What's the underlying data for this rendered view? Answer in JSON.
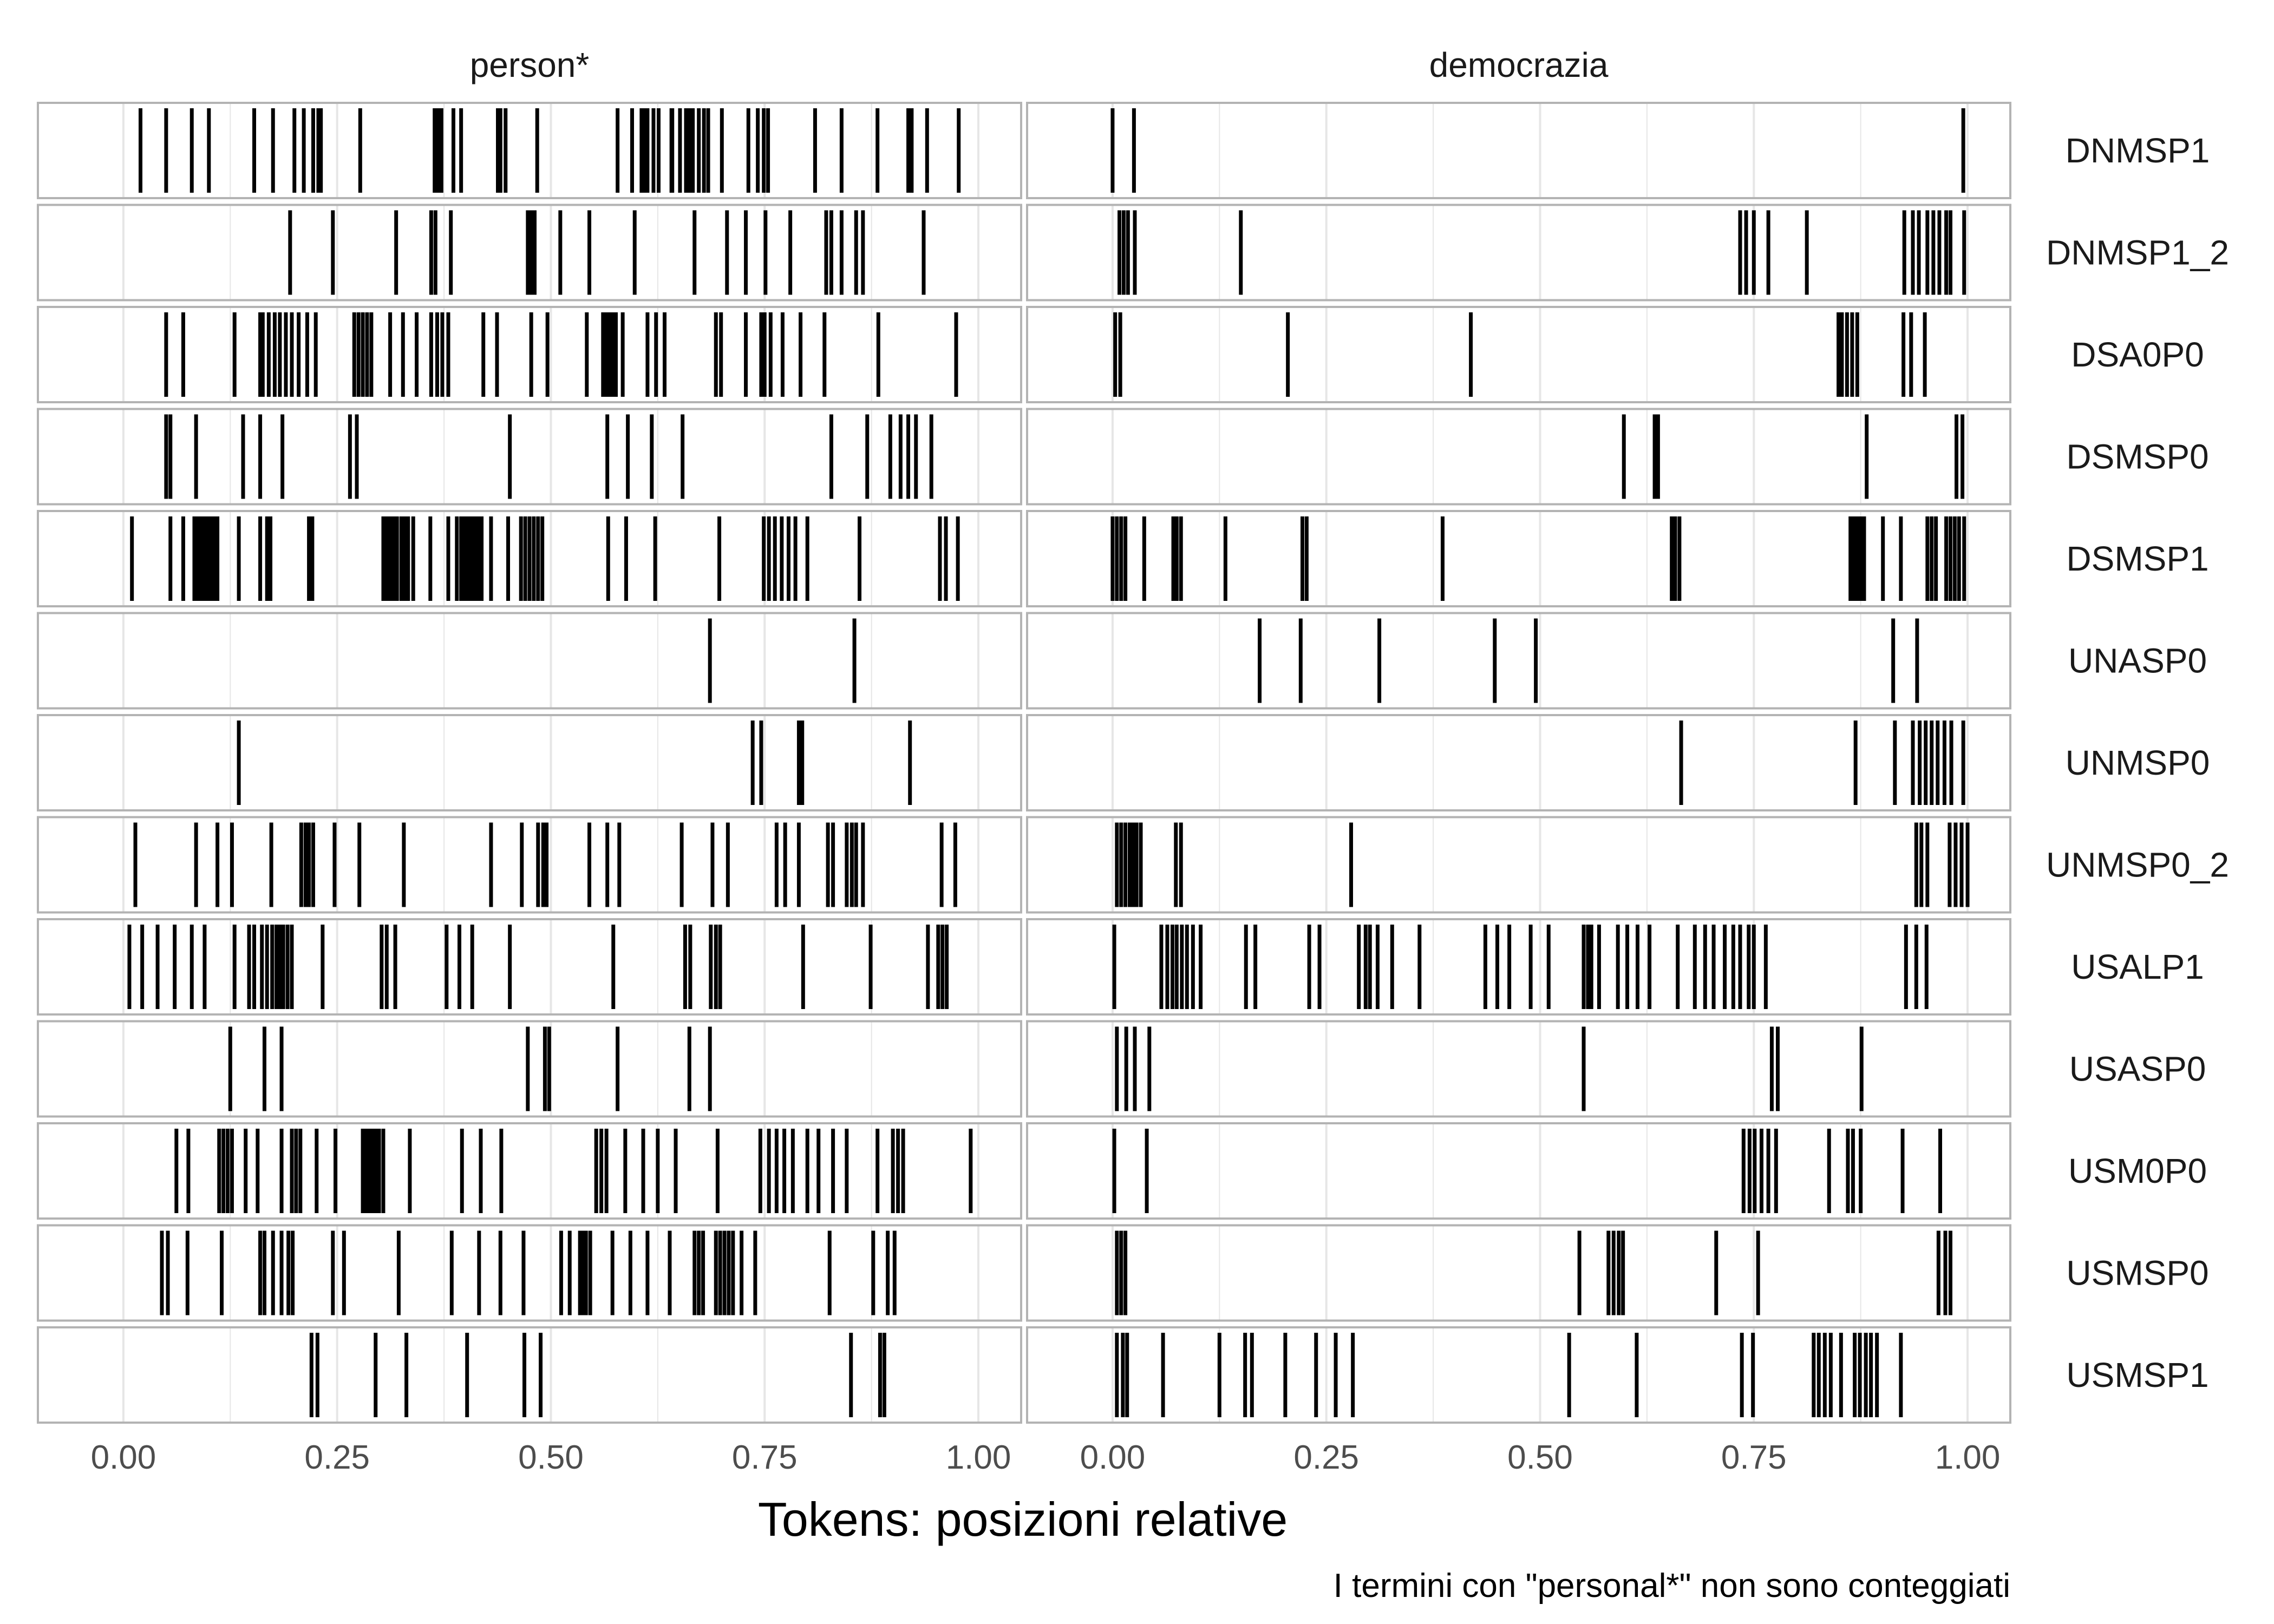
{
  "chart_data": {
    "type": "barcode",
    "facets": [
      "person*",
      "democrazia"
    ],
    "rows": [
      "DNMSP1",
      "DNMSP1_2",
      "DSA0P0",
      "DSMSP0",
      "DSMSP1",
      "UNASP0",
      "UNMSP0",
      "UNMSP0_2",
      "USALP1",
      "USASP0",
      "USM0P0",
      "USMSP0",
      "USMSP1"
    ],
    "xlabel": "Tokens: posizioni relative",
    "caption": "I termini con \"personal*\" non sono conteggiati",
    "xlim": [
      -0.1,
      1.05
    ],
    "ticks": [
      0.0,
      0.25,
      0.5,
      0.75,
      1.0
    ],
    "tick_labels": [
      "0.00",
      "0.25",
      "0.50",
      "0.75",
      "1.00"
    ],
    "grid": true,
    "colors": {
      "line": "#000000",
      "grid": "#e6e6e6",
      "panel_border": "#b3b3b3"
    },
    "positions": {
      "person*": {
        "DNMSP1": [
          0.02,
          0.05,
          0.08,
          0.1,
          0.153,
          0.175,
          0.2,
          0.211,
          0.222,
          0.228,
          0.231,
          0.277,
          0.364,
          0.368,
          0.372,
          0.386,
          0.395,
          0.438,
          0.438,
          0.441,
          0.447,
          0.484,
          0.578,
          0.595,
          0.606,
          0.609,
          0.613,
          0.62,
          0.626,
          0.641,
          0.642,
          0.651,
          0.658,
          0.662,
          0.666,
          0.673,
          0.679,
          0.684,
          0.7,
          0.731,
          0.742,
          0.749,
          0.754,
          0.809,
          0.84,
          0.882,
          0.918,
          0.922,
          0.94,
          0.977
        ],
        "DNMSP1_2": [
          0.195,
          0.245,
          0.319,
          0.36,
          0.365,
          0.383,
          0.473,
          0.476,
          0.478,
          0.481,
          0.511,
          0.545,
          0.598,
          0.668,
          0.706,
          0.728,
          0.751,
          0.78,
          0.822,
          0.828,
          0.84,
          0.857,
          0.865,
          0.936
        ],
        "DSA0P0": [
          0.05,
          0.07,
          0.13,
          0.16,
          0.163,
          0.17,
          0.177,
          0.183,
          0.19,
          0.197,
          0.205,
          0.215,
          0.225,
          0.27,
          0.275,
          0.28,
          0.285,
          0.29,
          0.312,
          0.327,
          0.343,
          0.36,
          0.367,
          0.373,
          0.38,
          0.421,
          0.437,
          0.477,
          0.496,
          0.542,
          0.561,
          0.565,
          0.568,
          0.572,
          0.576,
          0.584,
          0.613,
          0.623,
          0.633,
          0.693,
          0.699,
          0.728,
          0.746,
          0.75,
          0.757,
          0.771,
          0.792,
          0.82,
          0.883,
          0.974
        ],
        "DSMSP0": [
          0.05,
          0.055,
          0.085,
          0.14,
          0.16,
          0.186,
          0.265,
          0.273,
          0.452,
          0.566,
          0.59,
          0.618,
          0.654,
          0.828,
          0.87,
          0.897,
          0.909,
          0.918,
          0.927,
          0.945
        ],
        "DSMSP1": [
          0.01,
          0.055,
          0.07,
          0.083,
          0.087,
          0.09,
          0.094,
          0.098,
          0.102,
          0.106,
          0.11,
          0.135,
          0.16,
          0.168,
          0.172,
          0.217,
          0.221,
          0.304,
          0.308,
          0.312,
          0.316,
          0.32,
          0.325,
          0.329,
          0.333,
          0.339,
          0.359,
          0.38,
          0.39,
          0.395,
          0.399,
          0.403,
          0.407,
          0.411,
          0.415,
          0.419,
          0.43,
          0.45,
          0.465,
          0.47,
          0.475,
          0.48,
          0.485,
          0.49,
          0.567,
          0.588,
          0.622,
          0.697,
          0.749,
          0.755,
          0.762,
          0.77,
          0.778,
          0.786,
          0.8,
          0.861,
          0.955,
          0.962,
          0.976
        ],
        "UNASP0": [
          0.686,
          0.855
        ],
        "UNMSP0": [
          0.135,
          0.736,
          0.746,
          0.79,
          0.794,
          0.92
        ],
        "UNMSP0_2": [
          0.014,
          0.085,
          0.11,
          0.127,
          0.173,
          0.208,
          0.213,
          0.217,
          0.222,
          0.247,
          0.276,
          0.328,
          0.43,
          0.466,
          0.485,
          0.491,
          0.495,
          0.545,
          0.566,
          0.58,
          0.653,
          0.689,
          0.707,
          0.764,
          0.774,
          0.79,
          0.824,
          0.83,
          0.846,
          0.852,
          0.857,
          0.865,
          0.957,
          0.973
        ],
        "USALP1": [
          0.007,
          0.022,
          0.04,
          0.06,
          0.08,
          0.095,
          0.13,
          0.147,
          0.153,
          0.162,
          0.168,
          0.174,
          0.179,
          0.183,
          0.187,
          0.192,
          0.197,
          0.233,
          0.302,
          0.308,
          0.318,
          0.378,
          0.393,
          0.408,
          0.452,
          0.573,
          0.657,
          0.663,
          0.687,
          0.693,
          0.698,
          0.795,
          0.874,
          0.941,
          0.953,
          0.958,
          0.963
        ],
        "USASP0": [
          0.125,
          0.165,
          0.185,
          0.473,
          0.493,
          0.498,
          0.578,
          0.662,
          0.686
        ],
        "USM0P0": [
          0.062,
          0.076,
          0.112,
          0.117,
          0.122,
          0.127,
          0.143,
          0.157,
          0.185,
          0.197,
          0.202,
          0.207,
          0.226,
          0.248,
          0.28,
          0.284,
          0.288,
          0.292,
          0.296,
          0.299,
          0.304,
          0.335,
          0.396,
          0.418,
          0.442,
          0.553,
          0.559,
          0.565,
          0.587,
          0.608,
          0.625,
          0.646,
          0.695,
          0.745,
          0.755,
          0.764,
          0.773,
          0.783,
          0.8,
          0.813,
          0.83,
          0.846,
          0.882,
          0.9,
          0.906,
          0.912,
          0.991
        ],
        "USMSP0": [
          0.045,
          0.052,
          0.075,
          0.115,
          0.16,
          0.165,
          0.175,
          0.185,
          0.193,
          0.198,
          0.245,
          0.258,
          0.322,
          0.384,
          0.416,
          0.441,
          0.468,
          0.512,
          0.522,
          0.534,
          0.537,
          0.541,
          0.546,
          0.572,
          0.593,
          0.613,
          0.639,
          0.668,
          0.673,
          0.678,
          0.693,
          0.698,
          0.703,
          0.708,
          0.713,
          0.723,
          0.739,
          0.826,
          0.877,
          0.894,
          0.902
        ],
        "USMSP1": [
          0.22,
          0.227,
          0.295,
          0.331,
          0.402,
          0.469,
          0.488,
          0.851,
          0.885,
          0.89
        ]
      },
      "democrazia": {
        "DNMSP1": [
          0.0,
          0.025,
          0.995
        ],
        "DNMSP1_2": [
          0.008,
          0.013,
          0.018,
          0.026,
          0.15,
          0.734,
          0.741,
          0.75,
          0.767,
          0.812,
          0.926,
          0.936,
          0.943,
          0.953,
          0.96,
          0.967,
          0.975,
          0.98,
          0.996
        ],
        "DSA0P0": [
          0.003,
          0.009,
          0.205,
          0.419,
          0.849,
          0.853,
          0.859,
          0.865,
          0.871,
          0.925,
          0.934,
          0.95
        ],
        "DSMSP0": [
          0.598,
          0.634,
          0.638,
          0.882,
          0.987,
          0.994
        ],
        "DSMSP1": [
          0.0,
          0.005,
          0.01,
          0.015,
          0.037,
          0.071,
          0.075,
          0.08,
          0.132,
          0.222,
          0.227,
          0.386,
          0.654,
          0.658,
          0.663,
          0.863,
          0.867,
          0.871,
          0.875,
          0.879,
          0.901,
          0.922,
          0.953,
          0.958,
          0.963,
          0.975,
          0.98,
          0.985,
          0.99,
          0.996
        ],
        "UNASP0": [
          0.172,
          0.22,
          0.312,
          0.447,
          0.495,
          0.913,
          0.941
        ],
        "UNMSP0": [
          0.665,
          0.869,
          0.915,
          0.936,
          0.944,
          0.951,
          0.958,
          0.965,
          0.973,
          0.981,
          0.995
        ],
        "UNMSP0_2": [
          0.005,
          0.01,
          0.015,
          0.02,
          0.024,
          0.028,
          0.033,
          0.074,
          0.08,
          0.279,
          0.94,
          0.946,
          0.953,
          0.979,
          0.986,
          0.993,
          1.0
        ],
        "USALP1": [
          0.002,
          0.057,
          0.064,
          0.07,
          0.075,
          0.081,
          0.087,
          0.094,
          0.103,
          0.156,
          0.167,
          0.23,
          0.242,
          0.288,
          0.296,
          0.301,
          0.31,
          0.327,
          0.359,
          0.436,
          0.45,
          0.464,
          0.489,
          0.51,
          0.551,
          0.556,
          0.56,
          0.569,
          0.591,
          0.602,
          0.614,
          0.628,
          0.661,
          0.681,
          0.693,
          0.703,
          0.716,
          0.726,
          0.734,
          0.744,
          0.75,
          0.764,
          0.928,
          0.94,
          0.952
        ],
        "USASP0": [
          0.005,
          0.016,
          0.026,
          0.043,
          0.551,
          0.771,
          0.778,
          0.876
        ],
        "USM0P0": [
          0.002,
          0.04,
          0.738,
          0.745,
          0.751,
          0.759,
          0.767,
          0.776,
          0.838,
          0.86,
          0.866,
          0.875,
          0.924,
          0.968
        ],
        "USMSP0": [
          0.005,
          0.01,
          0.015,
          0.546,
          0.58,
          0.586,
          0.592,
          0.597,
          0.706,
          0.755,
          0.966,
          0.974,
          0.98
        ],
        "USMSP1": [
          0.005,
          0.012,
          0.017,
          0.059,
          0.125,
          0.155,
          0.163,
          0.202,
          0.238,
          0.261,
          0.281,
          0.534,
          0.613,
          0.736,
          0.749,
          0.82,
          0.826,
          0.833,
          0.84,
          0.852,
          0.868,
          0.874,
          0.881,
          0.887,
          0.894,
          0.922
        ]
      }
    }
  }
}
